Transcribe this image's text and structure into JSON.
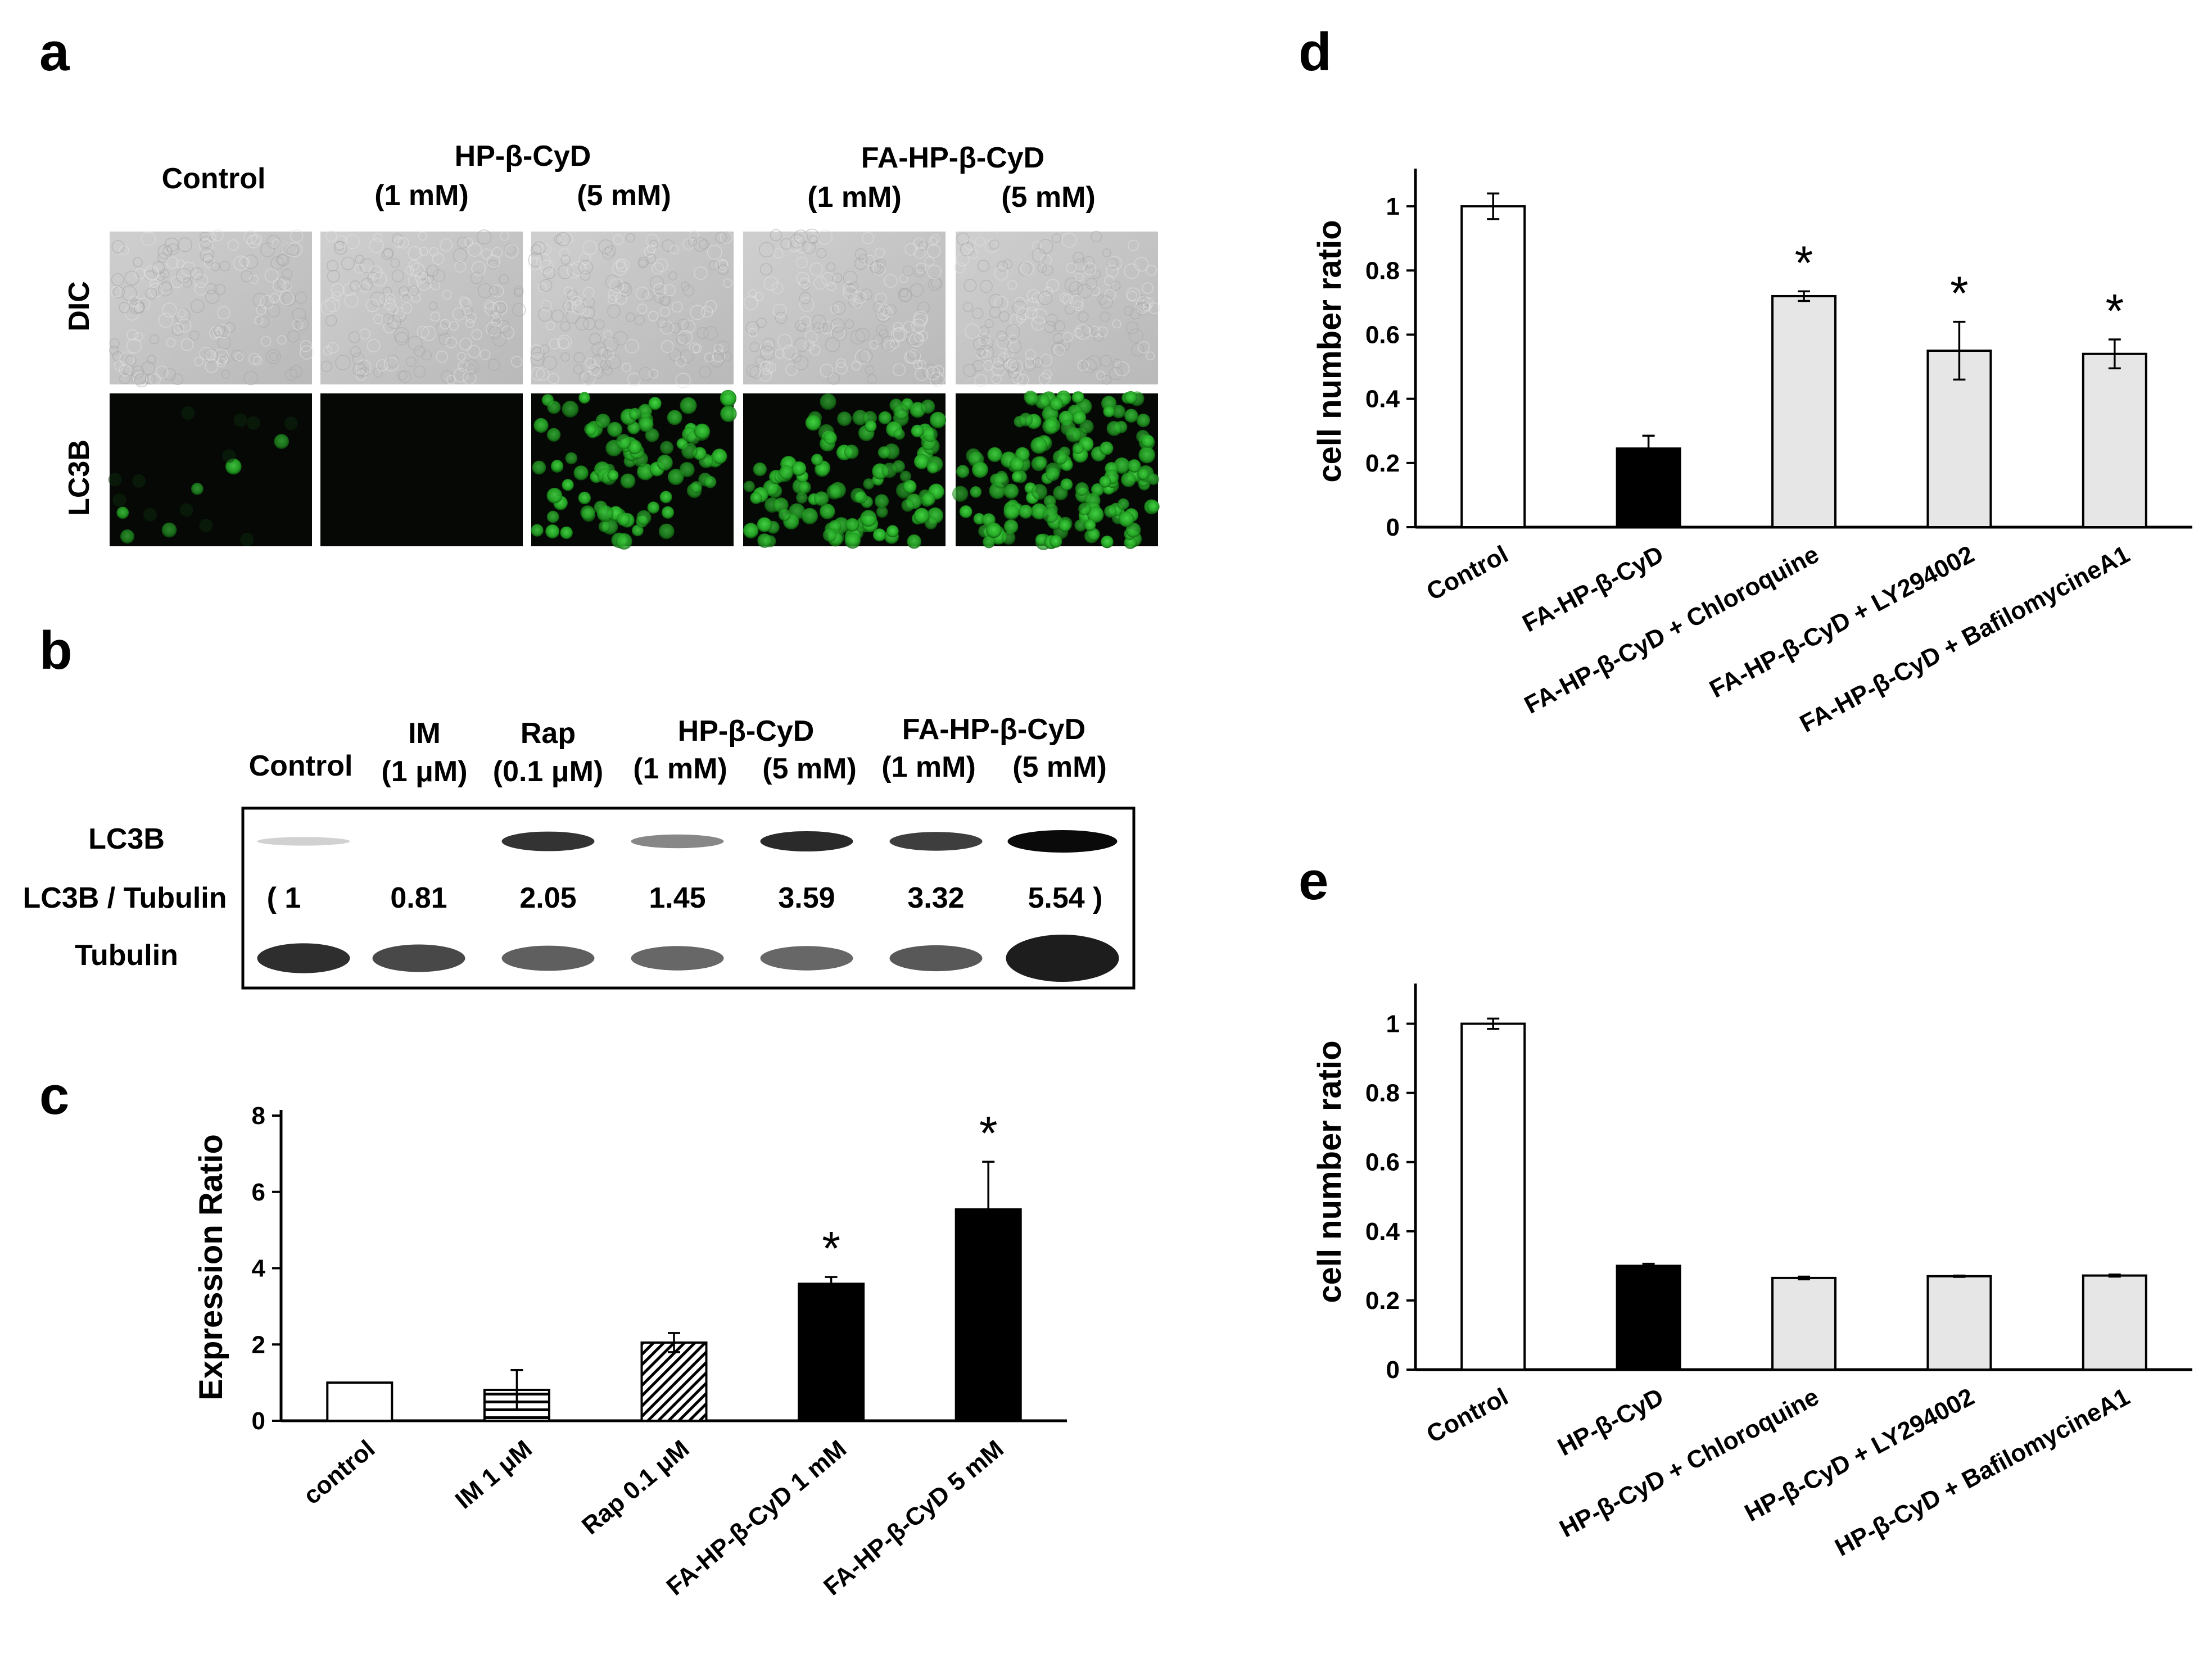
{
  "panels": {
    "a": {
      "letter": "a",
      "col_headers": {
        "control": "Control",
        "hp_group": "HP-β-CyD",
        "hp_1": "(1 mM)",
        "hp_5": "(5 mM)",
        "fa_group": "FA-HP-β-CyD",
        "fa_1": "(1 mM)",
        "fa_5": "(5 mM)"
      },
      "row_labels": {
        "dic": "DIC",
        "lc3b": "LC3B"
      },
      "lc3b_intensity": [
        0.03,
        0.0,
        0.55,
        0.65,
        0.85
      ],
      "colors": {
        "dic": "#c4c4c4",
        "green": "#35c235",
        "black": "#050805"
      }
    },
    "b": {
      "letter": "b",
      "headers": {
        "control": "Control",
        "im": "IM",
        "im_conc": "(1 μM)",
        "rap": "Rap",
        "rap_conc": "(0.1 μM)",
        "hp_group": "HP-β-CyD",
        "hp_1": "(1 mM)",
        "hp_5": "(5 mM)",
        "fa_group": "FA-HP-β-CyD",
        "fa_1": "(1 mM)",
        "fa_5": "(5 mM)"
      },
      "row_labels": {
        "lc3b": "LC3B",
        "ratio": "LC3B / Tubulin",
        "tubulin": "Tubulin"
      },
      "ratio_values": [
        "( 1",
        "0.81",
        "2.05",
        "1.45",
        "3.59",
        "3.32",
        "5.54 )"
      ],
      "lc3b_band_strength": [
        0.05,
        0.0,
        0.8,
        0.4,
        0.85,
        0.75,
        1.0
      ],
      "tubulin_band_strength": [
        0.9,
        0.75,
        0.6,
        0.55,
        0.55,
        0.65,
        1.0
      ]
    },
    "c": {
      "letter": "c"
    },
    "d": {
      "letter": "d"
    },
    "e": {
      "letter": "e"
    }
  },
  "chart_data": [
    {
      "panel": "c",
      "type": "bar",
      "ylabel": "Expression Ratio",
      "ylim": [
        0,
        8
      ],
      "yticks": [
        "0",
        "2",
        "4",
        "6",
        "8"
      ],
      "categories": [
        "control",
        "IM 1 μM",
        "Rap 0.1 μM",
        "FA-HP-β-CyD 1 mM",
        "FA-HP-β-CyD 5 mM"
      ],
      "values": [
        1.0,
        0.81,
        2.05,
        3.59,
        5.54
      ],
      "errors": [
        0.0,
        0.52,
        0.25,
        0.18,
        1.25
      ],
      "fills": [
        "white",
        "hlines",
        "diag",
        "black",
        "black"
      ],
      "significance": [
        "",
        "",
        "",
        "*",
        "*"
      ],
      "grid": false
    },
    {
      "panel": "d",
      "type": "bar",
      "ylabel": "cell number ratio",
      "ylim": [
        0,
        1.1
      ],
      "yticks": [
        "0",
        "0.2",
        "0.4",
        "0.6",
        "0.8",
        "1"
      ],
      "categories": [
        "Control",
        "FA-HP-β-CyD",
        "FA-HP-β-CyD + Chloroquine",
        "FA-HP-β-CyD + LY294002",
        "FA-HP-β-CyD + BafilomycineA1"
      ],
      "values": [
        1.0,
        0.245,
        0.72,
        0.55,
        0.54
      ],
      "errors": [
        0.04,
        0.04,
        0.015,
        0.09,
        0.045
      ],
      "fills": [
        "white",
        "black",
        "lightgray",
        "lightgray",
        "lightgray"
      ],
      "significance": [
        "",
        "",
        "*",
        "*",
        "*"
      ],
      "grid": false
    },
    {
      "panel": "e",
      "type": "bar",
      "ylabel": "cell number ratio",
      "ylim": [
        0,
        1.1
      ],
      "yticks": [
        "0",
        "0.2",
        "0.4",
        "0.6",
        "0.8",
        "1"
      ],
      "categories": [
        "Control",
        "HP-β-CyD",
        "HP-β-CyD + Chloroquine",
        "HP-β-CyD + LY294002",
        "HP-β-CyD + BafilomycineA1"
      ],
      "values": [
        1.0,
        0.3,
        0.265,
        0.27,
        0.272
      ],
      "errors": [
        0.015,
        0.006,
        0.004,
        0.002,
        0.003
      ],
      "fills": [
        "white",
        "black",
        "lightgray",
        "lightgray",
        "lightgray"
      ],
      "significance": [
        "",
        "",
        "",
        "",
        ""
      ],
      "grid": false
    }
  ]
}
